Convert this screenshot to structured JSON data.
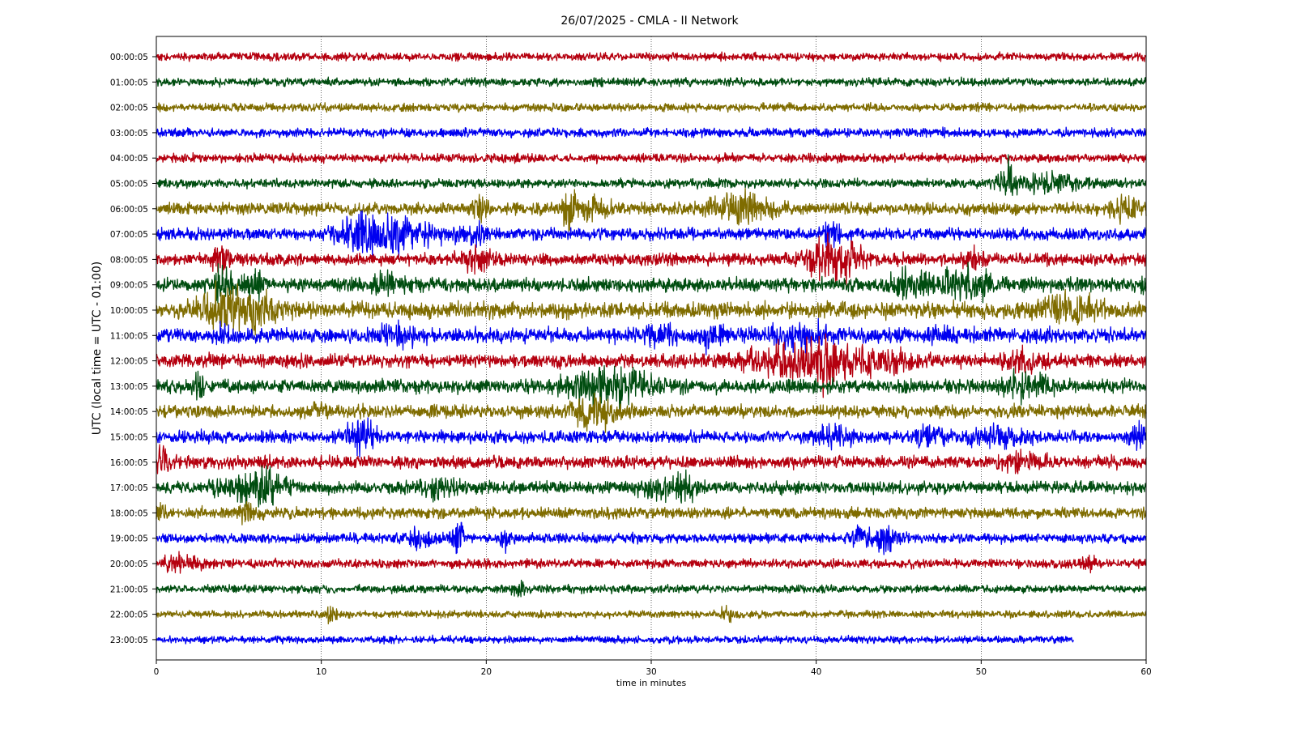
{
  "chart_data": {
    "type": "line",
    "title": "26/07/2025 - CMLA - II Network",
    "xlabel": "time in minutes",
    "ylabel": "UTC (local time = UTC - 01:00)",
    "xlim": [
      0,
      60
    ],
    "x_ticks": [
      "0",
      "10",
      "20",
      "30",
      "40",
      "50",
      "60"
    ],
    "grid": "vertical dotted lines at each x tick",
    "colors": [
      "#b5000f",
      "#004d10",
      "#7f6c00",
      "#0000f0"
    ],
    "series": [
      {
        "name": "00:00:05",
        "duration": 60,
        "amplitude": 1.0,
        "events": []
      },
      {
        "name": "01:00:05",
        "duration": 60,
        "amplitude": 1.0,
        "events": []
      },
      {
        "name": "02:00:05",
        "duration": 60,
        "amplitude": 1.0,
        "events": []
      },
      {
        "name": "03:00:05",
        "duration": 60,
        "amplitude": 1.1,
        "events": []
      },
      {
        "name": "04:00:05",
        "duration": 60,
        "amplitude": 1.1,
        "events": []
      },
      {
        "name": "05:00:05",
        "duration": 60,
        "amplitude": 1.1,
        "events": [
          {
            "t": 51.6,
            "w": 0.5,
            "a": 5
          },
          {
            "t": 54.5,
            "w": 2.0,
            "a": 2
          }
        ]
      },
      {
        "name": "06:00:05",
        "duration": 60,
        "amplitude": 1.5,
        "events": [
          {
            "t": 19.6,
            "w": 0.4,
            "a": 3
          },
          {
            "t": 25.0,
            "w": 0.4,
            "a": 3
          },
          {
            "t": 26.5,
            "w": 1.5,
            "a": 2
          },
          {
            "t": 35.2,
            "w": 2.0,
            "a": 3
          },
          {
            "t": 58.5,
            "w": 1.0,
            "a": 2.5
          }
        ]
      },
      {
        "name": "07:00:05",
        "duration": 60,
        "amplitude": 1.5,
        "events": [
          {
            "t": 12.5,
            "w": 1.5,
            "a": 3.5
          },
          {
            "t": 15.0,
            "w": 2.5,
            "a": 2.5
          },
          {
            "t": 19.5,
            "w": 0.8,
            "a": 2
          },
          {
            "t": 41.0,
            "w": 0.5,
            "a": 5
          }
        ]
      },
      {
        "name": "08:00:05",
        "duration": 60,
        "amplitude": 1.5,
        "events": [
          {
            "t": 3.9,
            "w": 0.5,
            "a": 4
          },
          {
            "t": 19.5,
            "w": 1.0,
            "a": 3
          },
          {
            "t": 41.0,
            "w": 1.5,
            "a": 6
          },
          {
            "t": 49.5,
            "w": 0.5,
            "a": 2
          }
        ]
      },
      {
        "name": "09:00:05",
        "duration": 60,
        "amplitude": 1.7,
        "events": [
          {
            "t": 4.0,
            "w": 0.6,
            "a": 4
          },
          {
            "t": 6.0,
            "w": 0.6,
            "a": 3
          },
          {
            "t": 14.0,
            "w": 1.0,
            "a": 2
          },
          {
            "t": 45.5,
            "w": 1.0,
            "a": 3
          },
          {
            "t": 49.0,
            "w": 2.0,
            "a": 3
          },
          {
            "t": 60.0,
            "w": 0.3,
            "a": 2
          }
        ]
      },
      {
        "name": "10:00:05",
        "duration": 60,
        "amplitude": 2.0,
        "events": [
          {
            "t": 4.0,
            "w": 1.5,
            "a": 4
          },
          {
            "t": 6.0,
            "w": 1.5,
            "a": 3
          },
          {
            "t": 54.5,
            "w": 1.5,
            "a": 2
          },
          {
            "t": 56.0,
            "w": 1.0,
            "a": 2
          }
        ]
      },
      {
        "name": "11:00:05",
        "duration": 60,
        "amplitude": 1.8,
        "events": [
          {
            "t": 4.0,
            "w": 0.5,
            "a": 2
          },
          {
            "t": 14.5,
            "w": 1.5,
            "a": 1.8
          },
          {
            "t": 30.5,
            "w": 1.0,
            "a": 2
          },
          {
            "t": 33.5,
            "w": 1.0,
            "a": 2
          },
          {
            "t": 39.0,
            "w": 1.5,
            "a": 2.5
          },
          {
            "t": 47.5,
            "w": 1.0,
            "a": 1.5
          }
        ]
      },
      {
        "name": "12:00:05",
        "duration": 60,
        "amplitude": 1.7,
        "events": [
          {
            "t": 38.5,
            "w": 3.0,
            "a": 3
          },
          {
            "t": 40.5,
            "w": 1.0,
            "a": 4
          },
          {
            "t": 43.0,
            "w": 3.0,
            "a": 2
          },
          {
            "t": 52.5,
            "w": 1.0,
            "a": 2
          }
        ]
      },
      {
        "name": "13:00:05",
        "duration": 60,
        "amplitude": 1.7,
        "events": [
          {
            "t": 2.5,
            "w": 0.5,
            "a": 2
          },
          {
            "t": 26.5,
            "w": 2.0,
            "a": 3
          },
          {
            "t": 28.5,
            "w": 2.0,
            "a": 2.5
          },
          {
            "t": 52.5,
            "w": 1.5,
            "a": 3
          }
        ]
      },
      {
        "name": "14:00:05",
        "duration": 60,
        "amplitude": 1.6,
        "events": [
          {
            "t": 26.5,
            "w": 1.2,
            "a": 4
          },
          {
            "t": 10.0,
            "w": 0.5,
            "a": 1.5
          }
        ]
      },
      {
        "name": "15:00:05",
        "duration": 60,
        "amplitude": 1.5,
        "events": [
          {
            "t": 12.5,
            "w": 1.0,
            "a": 3
          },
          {
            "t": 41.0,
            "w": 1.0,
            "a": 2.5
          },
          {
            "t": 47.0,
            "w": 1.0,
            "a": 2
          },
          {
            "t": 51.0,
            "w": 1.5,
            "a": 2
          },
          {
            "t": 59.5,
            "w": 0.5,
            "a": 3
          }
        ]
      },
      {
        "name": "16:00:05",
        "duration": 60,
        "amplitude": 1.5,
        "events": [
          {
            "t": 0.5,
            "w": 0.5,
            "a": 4
          },
          {
            "t": 52.5,
            "w": 1.5,
            "a": 2
          }
        ]
      },
      {
        "name": "17:00:05",
        "duration": 60,
        "amplitude": 1.5,
        "events": [
          {
            "t": 5.5,
            "w": 1.5,
            "a": 3.5
          },
          {
            "t": 7.0,
            "w": 1.0,
            "a": 2
          },
          {
            "t": 17.0,
            "w": 1.5,
            "a": 1.5
          },
          {
            "t": 30.0,
            "w": 1.5,
            "a": 2
          },
          {
            "t": 31.8,
            "w": 1.0,
            "a": 2.5
          }
        ]
      },
      {
        "name": "18:00:05",
        "duration": 60,
        "amplitude": 1.4,
        "events": [
          {
            "t": 0.2,
            "w": 0.3,
            "a": 2
          },
          {
            "t": 5.5,
            "w": 0.5,
            "a": 2
          }
        ]
      },
      {
        "name": "19:00:05",
        "duration": 60,
        "amplitude": 1.2,
        "events": [
          {
            "t": 16.0,
            "w": 0.8,
            "a": 2.5
          },
          {
            "t": 18.2,
            "w": 0.4,
            "a": 4
          },
          {
            "t": 21.2,
            "w": 0.4,
            "a": 2.5
          },
          {
            "t": 42.7,
            "w": 0.5,
            "a": 2
          },
          {
            "t": 44.3,
            "w": 0.8,
            "a": 3
          }
        ]
      },
      {
        "name": "20:00:05",
        "duration": 60,
        "amplitude": 1.1,
        "events": [
          {
            "t": 1.5,
            "w": 1.5,
            "a": 1.5
          },
          {
            "t": 56.5,
            "w": 0.5,
            "a": 1.5
          }
        ]
      },
      {
        "name": "21:00:05",
        "duration": 60,
        "amplitude": 1.0,
        "events": [
          {
            "t": 22.0,
            "w": 0.5,
            "a": 1.5
          }
        ]
      },
      {
        "name": "22:00:05",
        "duration": 60,
        "amplitude": 0.9,
        "events": [
          {
            "t": 10.6,
            "w": 0.3,
            "a": 2
          },
          {
            "t": 34.5,
            "w": 0.5,
            "a": 1.5
          }
        ]
      },
      {
        "name": "23:00:05",
        "duration": 55.6,
        "amplitude": 0.9,
        "events": []
      }
    ]
  }
}
